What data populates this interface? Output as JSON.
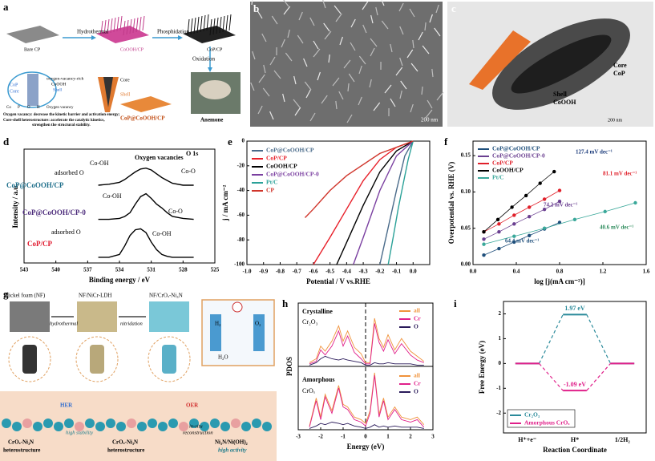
{
  "figure": {
    "panels": [
      {
        "label": "a",
        "texts": [
          "Bare CP",
          "Hydrothermal",
          "CoOOH/CP",
          "Phosphidation",
          "CoP/CP",
          "Oxidation",
          "CoP",
          "Core",
          "oxygen-vacancy-rich",
          "CoOOH",
          "Shell",
          "Core",
          "Shell",
          "CoP@CoOOH/CP",
          "Anemone",
          "Co",
          "P",
          "O",
          "H",
          "Oxygen vacancy",
          "Oxygen vacancy: decrease the kinetic barrier and activation energy;",
          "Core-shell heterostructure: accelerate the catalytic kinetics,",
          "strengthen the structural stability."
        ]
      },
      {
        "label": "b",
        "texts": [
          "200 nm"
        ]
      },
      {
        "label": "c",
        "texts": [
          "Core",
          "CoP",
          "Shell",
          "CoOOH",
          "200 nm"
        ]
      },
      {
        "label": "g",
        "texts": [
          "Nickel foam (NF)",
          "NF/NiCr-LDH",
          "NF/CrOₓ-Ni₃N",
          "hydrothermal",
          "nitridation",
          "H₂",
          "O₂",
          "H₂O",
          "HER",
          "OER",
          "in-situ",
          "reconstruction",
          "CrOₓ-Ni₃N",
          "heterostructure",
          "high stability",
          "CrOₓ-Ni₃N",
          "heterostructure",
          "Ni₃N/Ni(OH)₂",
          "high activity"
        ]
      }
    ]
  },
  "chart_data": [
    {
      "type": "line",
      "label": "d",
      "xlabel": "Binding energy / eV",
      "ylabel": "Intensity / a.u.",
      "line_color": "#000000",
      "xlim": [
        543,
        525
      ],
      "xticks": [
        543,
        540,
        537,
        534,
        531,
        528,
        525
      ],
      "ylim": [
        0,
        12
      ],
      "x": [
        536,
        535,
        534,
        533.5,
        533,
        532.5,
        532,
        531.5,
        531,
        530.5,
        530,
        529.5,
        529,
        528,
        527
      ],
      "series": [
        {
          "name": "CoP@CoOOH/CP",
          "color": "#1f6f8b",
          "values": [
            8.2,
            8.3,
            8.5,
            8.8,
            9.2,
            9.6,
            9.9,
            10.0,
            9.8,
            9.4,
            9.0,
            8.7,
            8.4,
            8.2,
            8.2
          ]
        },
        {
          "name": "CoP@CoOOH/CP-0",
          "color": "#4b2a7a",
          "values": [
            4.6,
            4.6,
            4.7,
            4.9,
            5.3,
            6.2,
            7.0,
            7.3,
            6.8,
            6.2,
            5.8,
            5.3,
            4.9,
            4.7,
            4.6
          ]
        },
        {
          "name": "CoP/CP",
          "color": "#e0182d",
          "values": [
            0.6,
            0.6,
            0.9,
            1.8,
            2.9,
            3.5,
            3.6,
            3.2,
            2.2,
            1.4,
            0.9,
            0.7,
            0.6,
            0.6,
            0.6
          ]
        }
      ],
      "annotations": [
        "O 1s",
        "Co-OH",
        "Oxygen vacancies",
        "adsorbed O",
        "Co-O",
        "Co-OH",
        "Co-O",
        "adsorbed O",
        "Co-OH"
      ]
    },
    {
      "type": "line",
      "label": "e",
      "xlabel": "Potential / V vs.RHE",
      "ylabel": "j / mA cm⁻²",
      "legend": "upper left",
      "xlim": [
        -1.0,
        0.1
      ],
      "xticks": [
        {
          "value": -1.0,
          "label": "-1.0"
        },
        -0.9,
        -0.8,
        -0.7,
        -0.6,
        -0.5,
        -0.4,
        -0.3,
        -0.2,
        -0.1,
        {
          "value": 0.0,
          "label": "0.0"
        }
      ],
      "ylim": [
        -100,
        0
      ],
      "yticks": [
        -100,
        -80,
        -60,
        -40,
        -20,
        0
      ],
      "series": [
        {
          "name": "CoP@CoOOH/CP",
          "color": "#4a6b8a",
          "x": [
            0.0,
            -0.05,
            -0.1,
            -0.15,
            -0.2
          ],
          "values": [
            0,
            -12,
            -40,
            -70,
            -100
          ]
        },
        {
          "name": "CoP/CP",
          "color": "#e8202a",
          "x": [
            0.0,
            -0.1,
            -0.2,
            -0.3,
            -0.4,
            -0.5,
            -0.6
          ],
          "values": [
            0,
            -5,
            -15,
            -32,
            -55,
            -78,
            -100
          ]
        },
        {
          "name": "CoOOH/CP",
          "color": "#000000",
          "x": [
            0.0,
            -0.1,
            -0.2,
            -0.3,
            -0.4,
            -0.46
          ],
          "values": [
            0,
            -8,
            -25,
            -52,
            -82,
            -100
          ]
        },
        {
          "name": "CoP@CoOOH/CP-0",
          "color": "#7a3fa0",
          "x": [
            0.0,
            -0.1,
            -0.2,
            -0.3,
            -0.36
          ],
          "values": [
            0,
            -12,
            -40,
            -78,
            -100
          ]
        },
        {
          "name": "Pt/C",
          "color": "#2aa198",
          "x": [
            0.0,
            -0.03,
            -0.06,
            -0.09,
            -0.12,
            -0.15
          ],
          "values": [
            0,
            -15,
            -35,
            -55,
            -78,
            -100
          ]
        },
        {
          "name": "CP",
          "color": "#d0352b",
          "x": [
            0.0,
            -0.2,
            -0.4,
            -0.5,
            -0.6,
            -0.65
          ],
          "values": [
            0,
            -10,
            -28,
            -40,
            -55,
            -62
          ]
        }
      ]
    },
    {
      "type": "scatter",
      "label": "f",
      "xlabel": "log [j(mA cm⁻²)]",
      "ylabel": "Overpotential vs. RHE (V)",
      "legend": "upper left",
      "xlim": [
        0,
        1.6
      ],
      "xticks": [
        {
          "value": 0,
          "label": "0.0"
        },
        0.4,
        0.8,
        1.2,
        1.6
      ],
      "ylim": [
        0,
        0.17
      ],
      "yticks": [
        {
          "value": 0,
          "label": "0.00"
        },
        {
          "value": 0.05,
          "label": "0.05"
        },
        {
          "value": 0.1,
          "label": "0.10"
        },
        {
          "value": 0.15,
          "label": "0.15"
        }
      ],
      "series": [
        {
          "name": "CoP@CoOOH/CP",
          "color": "#1f4f7b",
          "x": [
            0.1,
            0.24,
            0.38,
            0.52,
            0.66,
            0.8
          ],
          "values": [
            0.013,
            0.022,
            0.031,
            0.04,
            0.049,
            0.058
          ]
        },
        {
          "name": "CoP@CoOOH/CP-0",
          "color": "#6a3f90",
          "x": [
            0.1,
            0.24,
            0.38,
            0.52,
            0.66,
            0.8
          ],
          "values": [
            0.035,
            0.045,
            0.056,
            0.066,
            0.076,
            0.087
          ]
        },
        {
          "name": "CoP/CP",
          "color": "#e0202a",
          "x": [
            0.1,
            0.24,
            0.38,
            0.52,
            0.66,
            0.8
          ],
          "values": [
            0.045,
            0.056,
            0.068,
            0.079,
            0.09,
            0.102
          ]
        },
        {
          "name": "CoOOH/CP",
          "color": "#000000",
          "x": [
            0.1,
            0.23,
            0.36,
            0.49,
            0.62,
            0.75
          ],
          "values": [
            0.045,
            0.062,
            0.079,
            0.095,
            0.112,
            0.128
          ]
        },
        {
          "name": "Pt/C",
          "color": "#3aa89a",
          "x": [
            0.1,
            0.38,
            0.66,
            0.94,
            1.22,
            1.5
          ],
          "values": [
            0.028,
            0.039,
            0.05,
            0.062,
            0.073,
            0.085
          ]
        }
      ],
      "annotations": [
        "127.4 mV dec⁻¹",
        "81.1 mV dec⁻¹",
        "74.2 mV dec⁻¹",
        "64.4 mV dec⁻¹",
        "40.6 mV dec⁻¹"
      ]
    },
    {
      "type": "line",
      "label": "h",
      "xlabel": "Energy (eV)",
      "ylabel": "PDOS",
      "xlim": [
        -3,
        3
      ],
      "xticks": [
        -3,
        -2,
        -1,
        0,
        1,
        2,
        3
      ],
      "ylim": [
        0,
        10
      ],
      "x": [
        -2.5,
        -2.2,
        -2,
        -1.8,
        -1.5,
        -1.2,
        -1,
        -0.8,
        -0.5,
        -0.2,
        0,
        0.2,
        0.4,
        0.6,
        0.8,
        1,
        1.3,
        1.6,
        2,
        2.3,
        2.6
      ],
      "series": [
        {
          "name": "all",
          "color": "#f0923a",
          "values": [
            5.3,
            5.6,
            6.6,
            6.2,
            7.0,
            8.2,
            7.0,
            7.8,
            6.5,
            6.0,
            5.3,
            5.3,
            8.8,
            7.2,
            6.5,
            7.5,
            6.3,
            7.2,
            6.2,
            5.8,
            5.4
          ]
        },
        {
          "name": "Cr",
          "color": "#e0208a",
          "values": [
            5.2,
            5.4,
            6.3,
            5.9,
            6.6,
            7.8,
            6.6,
            7.4,
            6.1,
            5.6,
            5.2,
            5.2,
            8.4,
            6.9,
            6.2,
            7.1,
            6.0,
            6.8,
            5.9,
            5.5,
            5.3
          ]
        },
        {
          "name": "O",
          "color": "#2a1a5a",
          "values": [
            5.1,
            5.3,
            5.6,
            5.8,
            5.6,
            5.5,
            5.6,
            5.5,
            5.4,
            5.3,
            5.1,
            5.1,
            5.3,
            5.2,
            5.2,
            5.3,
            5.2,
            5.2,
            5.2,
            5.1,
            5.1
          ]
        },
        {
          "name": "all",
          "color": "#f0923a",
          "values": [
            0.3,
            2.5,
            1.0,
            2.8,
            1.5,
            3.5,
            2.0,
            1.8,
            1.0,
            0.8,
            0.5,
            1.5,
            4.5,
            1.2,
            2.5,
            1.0,
            1.8,
            1.0,
            0.8,
            1.0,
            0.4
          ]
        },
        {
          "name": "Cr",
          "color": "#e0208a",
          "values": [
            0.2,
            2.3,
            0.8,
            2.6,
            1.3,
            3.3,
            1.8,
            1.6,
            0.8,
            0.6,
            0.3,
            1.3,
            4.3,
            1.0,
            2.3,
            0.8,
            1.6,
            0.8,
            0.6,
            0.8,
            0.2
          ]
        },
        {
          "name": "O",
          "color": "#2a1a5a",
          "values": [
            0.1,
            0.3,
            0.5,
            0.4,
            0.6,
            0.5,
            0.4,
            0.5,
            0.3,
            0.2,
            0.1,
            0.2,
            0.4,
            0.2,
            0.3,
            0.2,
            0.3,
            0.2,
            0.2,
            0.2,
            0.1
          ]
        }
      ],
      "annotations": [
        "Crystalline",
        "Cr₂O₃",
        "Amorphous",
        "CrOₓ"
      ]
    },
    {
      "type": "step",
      "label": "i",
      "xlabel": "Reaction Coordinate",
      "ylabel": "Free Energy (eV)",
      "legend": "lower left",
      "categories": [
        "H⁺+e⁻",
        "H*",
        "1/2H₂"
      ],
      "ylim": [
        -2.8,
        2.5
      ],
      "yticks": [
        -2,
        -1,
        0,
        1,
        2
      ],
      "series": [
        {
          "name": "Cr₂O₃",
          "color": "#2a8a9a",
          "values": [
            0,
            1.97,
            0
          ],
          "value_labels": [
            null,
            "1.97 eV",
            null
          ]
        },
        {
          "name": "Amorphous CrOₓ",
          "color": "#e0208a",
          "values": [
            0,
            -1.09,
            0
          ],
          "value_labels": [
            null,
            "-1.09 eV",
            null
          ]
        }
      ]
    }
  ]
}
